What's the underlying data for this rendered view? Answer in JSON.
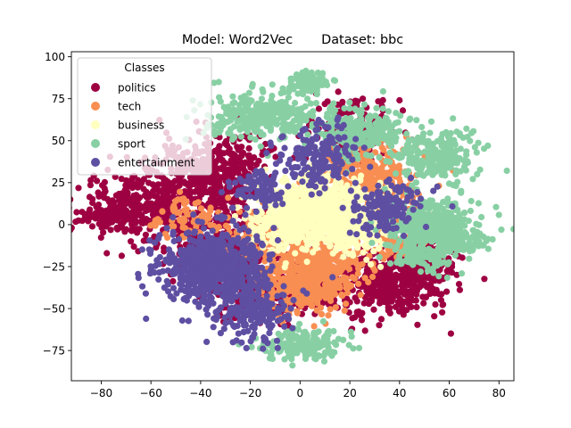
{
  "chart_data": {
    "type": "scatter",
    "title": "Model: Word2Vec       Dataset: bbc",
    "xlabel": "",
    "ylabel": "",
    "xlim": [
      -92,
      86
    ],
    "ylim": [
      -93,
      103
    ],
    "x_ticks": [
      -80,
      -60,
      -40,
      -20,
      0,
      20,
      40,
      60,
      80
    ],
    "y_ticks": [
      -75,
      -50,
      -25,
      0,
      25,
      50,
      75,
      100
    ],
    "grid": false,
    "legend": {
      "title": "Classes",
      "placement": "top-left"
    },
    "series": [
      {
        "name": "politics",
        "color": "#9e0142",
        "clusters": [
          {
            "cx": -60,
            "cy": 10,
            "sx": 13,
            "sy": 11,
            "n": 420
          },
          {
            "cx": -35,
            "cy": 30,
            "sx": 11,
            "sy": 12,
            "n": 420
          },
          {
            "cx": -25,
            "cy": -18,
            "sx": 11,
            "sy": 13,
            "n": 300
          },
          {
            "cx": -10,
            "cy": -40,
            "sx": 10,
            "sy": 8,
            "n": 220
          },
          {
            "cx": 35,
            "cy": -35,
            "sx": 11,
            "sy": 10,
            "n": 420
          },
          {
            "cx": 50,
            "cy": -20,
            "sx": 7,
            "sy": 8,
            "n": 160
          },
          {
            "cx": 22,
            "cy": 55,
            "sx": 8,
            "sy": 10,
            "n": 160
          },
          {
            "cx": -80,
            "cy": 3,
            "sx": 4,
            "sy": 3,
            "n": 40
          }
        ]
      },
      {
        "name": "tech",
        "color": "#f98e52",
        "clusters": [
          {
            "cx": 5,
            "cy": -30,
            "sx": 9,
            "sy": 10,
            "n": 560
          },
          {
            "cx": 28,
            "cy": 25,
            "sx": 11,
            "sy": 12,
            "n": 420
          },
          {
            "cx": -10,
            "cy": -5,
            "sx": 9,
            "sy": 8,
            "n": 160
          },
          {
            "cx": -45,
            "cy": 5,
            "sx": 8,
            "sy": 6,
            "n": 70
          },
          {
            "cx": 38,
            "cy": -5,
            "sx": 6,
            "sy": 8,
            "n": 100
          }
        ]
      },
      {
        "name": "business",
        "color": "#ffffbf",
        "clusters": [
          {
            "cx": 8,
            "cy": 10,
            "sx": 12,
            "sy": 10,
            "n": 700
          },
          {
            "cx": -5,
            "cy": 0,
            "sx": 8,
            "sy": 8,
            "n": 180
          },
          {
            "cx": 20,
            "cy": -8,
            "sx": 6,
            "sy": 6,
            "n": 100
          }
        ]
      },
      {
        "name": "sport",
        "color": "#88d0a4",
        "clusters": [
          {
            "cx": 53,
            "cy": -3,
            "sx": 9,
            "sy": 9,
            "n": 480
          },
          {
            "cx": 55,
            "cy": 40,
            "sx": 8,
            "sy": 8,
            "n": 220
          },
          {
            "cx": 25,
            "cy": 55,
            "sx": 9,
            "sy": 7,
            "n": 240
          },
          {
            "cx": -15,
            "cy": 65,
            "sx": 12,
            "sy": 7,
            "n": 320
          },
          {
            "cx": 3,
            "cy": 85,
            "sx": 4,
            "sy": 3,
            "n": 90
          },
          {
            "cx": 3,
            "cy": -72,
            "sx": 8,
            "sy": 5,
            "n": 150
          },
          {
            "cx": 50,
            "cy": -20,
            "sx": 5,
            "sy": 3,
            "n": 70
          },
          {
            "cx": 70,
            "cy": -10,
            "sx": 3,
            "sy": 3,
            "n": 30
          }
        ]
      },
      {
        "name": "entertainment",
        "color": "#5e4fa2",
        "clusters": [
          {
            "cx": -35,
            "cy": -25,
            "sx": 11,
            "sy": 11,
            "n": 620
          },
          {
            "cx": -20,
            "cy": -50,
            "sx": 8,
            "sy": 9,
            "n": 220
          },
          {
            "cx": 8,
            "cy": 40,
            "sx": 7,
            "sy": 9,
            "n": 180
          },
          {
            "cx": 35,
            "cy": 10,
            "sx": 7,
            "sy": 9,
            "n": 140
          },
          {
            "cx": -15,
            "cy": 22,
            "sx": 6,
            "sy": 6,
            "n": 90
          }
        ]
      }
    ]
  }
}
